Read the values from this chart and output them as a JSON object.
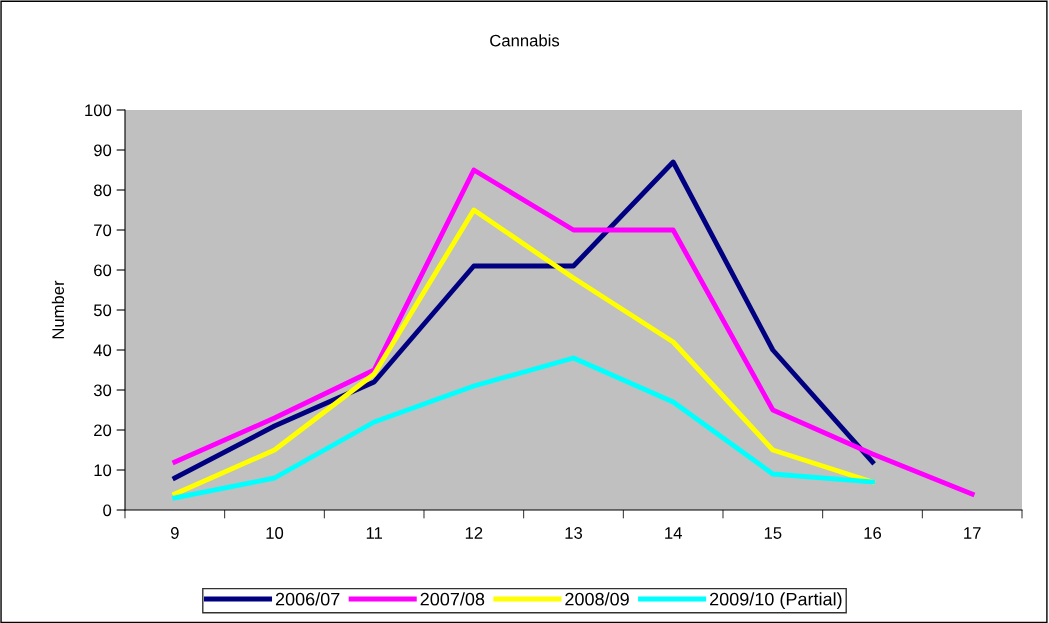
{
  "chart_data": {
    "type": "line",
    "title": "Cannabis",
    "ylabel": "Number",
    "categories": [
      "9",
      "10",
      "11",
      "12",
      "13",
      "14",
      "15",
      "16",
      "17"
    ],
    "ylim": [
      0,
      100
    ],
    "yticks": [
      0,
      10,
      20,
      30,
      40,
      50,
      60,
      70,
      80,
      90,
      100
    ],
    "grid": false,
    "legend": "bottom",
    "marker": "none",
    "line_style": "solid",
    "series": [
      {
        "name": "2006/07",
        "color": "#000080",
        "values": [
          8,
          21,
          32,
          61,
          61,
          87,
          40,
          12,
          null
        ]
      },
      {
        "name": "2007/08",
        "color": "#ff00ff",
        "values": [
          12,
          23,
          35,
          85,
          70,
          70,
          25,
          14,
          4
        ]
      },
      {
        "name": "2008/09",
        "color": "#ffff00",
        "values": [
          4,
          15,
          34,
          75,
          58,
          42,
          15,
          7,
          null
        ]
      },
      {
        "name": "2009/10 (Partial)",
        "color": "#00ffff",
        "values": [
          3,
          8,
          22,
          31,
          38,
          27,
          9,
          7,
          null
        ]
      }
    ]
  }
}
